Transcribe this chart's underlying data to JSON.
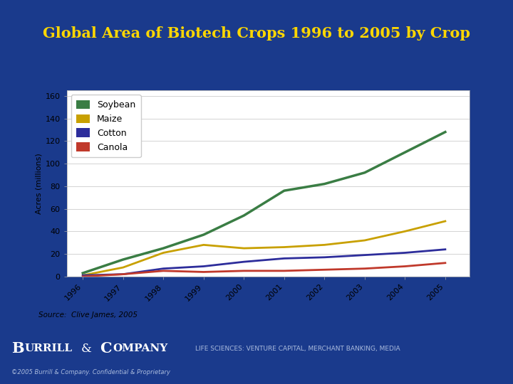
{
  "title": "Global Area of Biotech Crops 1996 to 2005 by Crop",
  "title_color": "#FFD700",
  "bg_color": "#1a3a8c",
  "chart_bg": "#ffffff",
  "years": [
    1996,
    1997,
    1998,
    1999,
    2000,
    2001,
    2002,
    2003,
    2004,
    2005
  ],
  "soybean": [
    3,
    15,
    25,
    37,
    54,
    76,
    82,
    92,
    110,
    128
  ],
  "maize": [
    1,
    8,
    21,
    28,
    25,
    26,
    28,
    32,
    40,
    49
  ],
  "cotton": [
    1,
    2,
    7,
    9,
    13,
    16,
    17,
    19,
    21,
    24
  ],
  "canola": [
    0,
    2,
    5,
    4,
    5,
    5,
    6,
    7,
    9,
    12
  ],
  "soybean_color": "#3a7d44",
  "maize_color": "#c8a000",
  "cotton_color": "#2d2d9b",
  "canola_color": "#c0392b",
  "ylabel": "Acres (millions)",
  "ylim": [
    0,
    165
  ],
  "yticks": [
    0,
    20,
    40,
    60,
    80,
    100,
    120,
    140,
    160
  ],
  "source_text": "Source:  Clive James, 2005",
  "footer_right": "LIFE SCIENCES: VENTURE CAPITAL, MERCHANT BANKING, MEDIA",
  "footer_sub": "©2005 Burrill & Company. Confidential & Proprietary",
  "title_separator_color": "#ffffff",
  "grid_color": "#cccccc",
  "tick_fontsize": 8,
  "ylabel_fontsize": 8,
  "legend_fontsize": 9,
  "title_fontsize": 15
}
